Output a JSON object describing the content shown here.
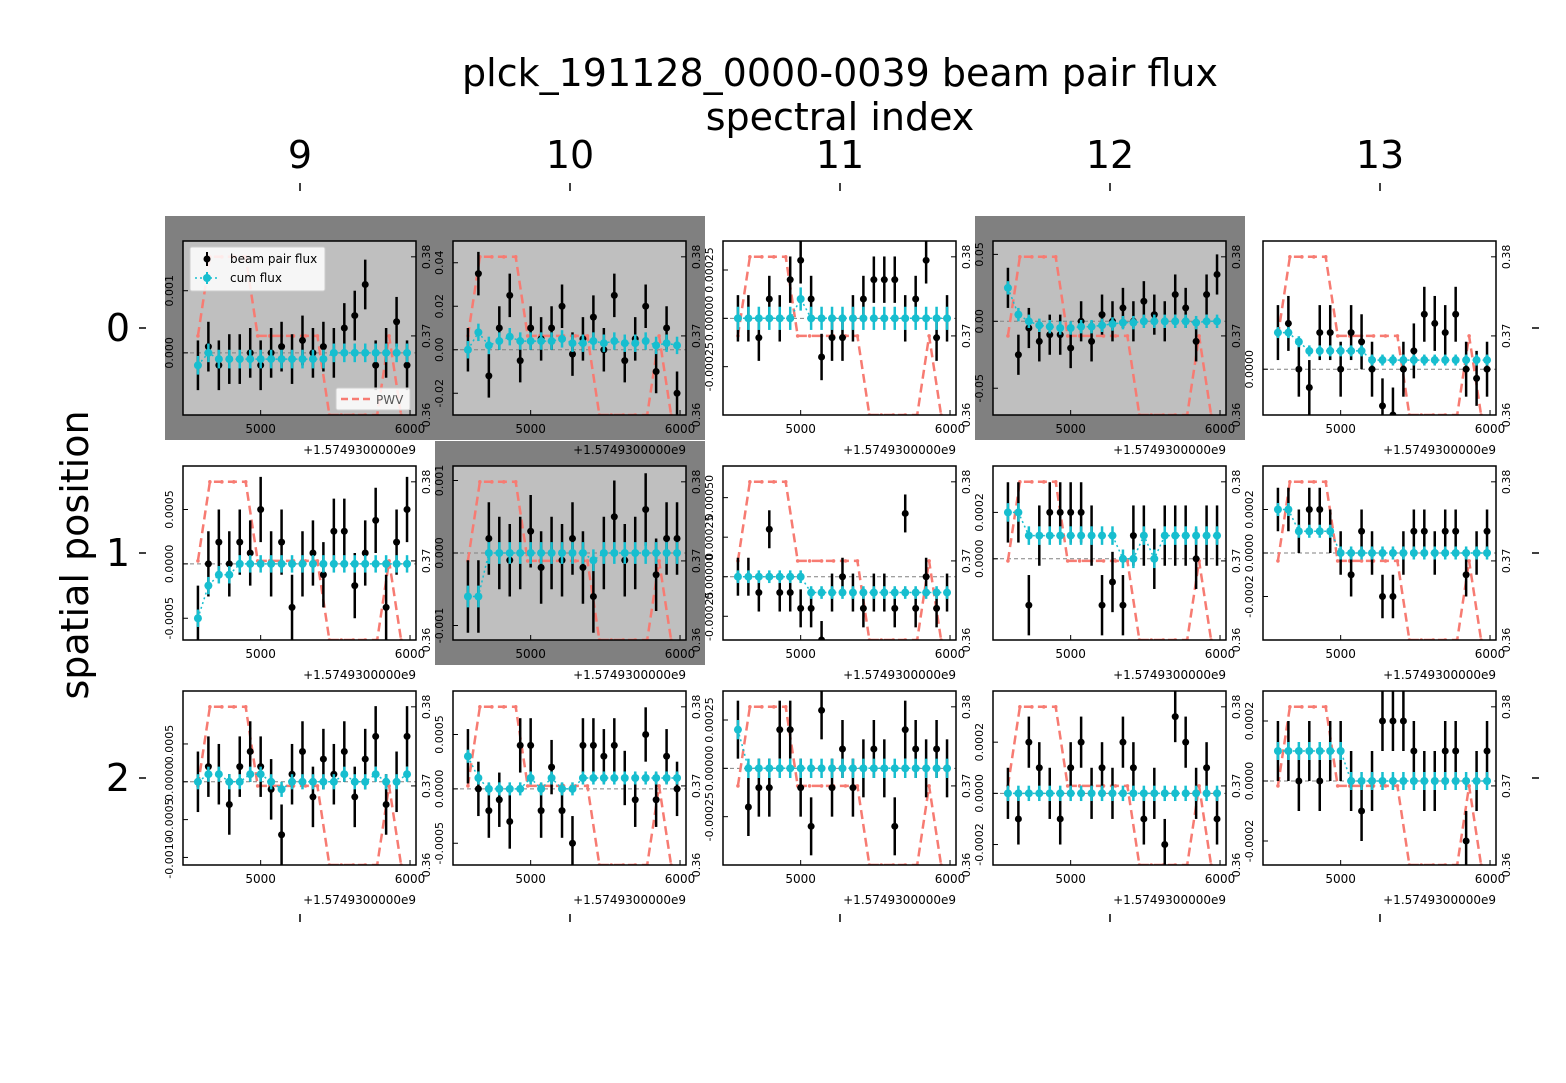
{
  "figure": {
    "title_line1": "plck_191128_0000-0039 beam pair flux",
    "title_line2": "spectral index",
    "ylabel": "spatial position",
    "column_labels": [
      "9",
      "10",
      "11",
      "12",
      "13"
    ],
    "row_labels": [
      "0",
      "1",
      "2"
    ],
    "x_tick_label": "5000",
    "x_tick_label_end": "6000",
    "x_offset_text": "+1.5749300000e9",
    "legend": {
      "beam": "beam pair flux",
      "cum": "cum flux",
      "pwv": "PWV"
    },
    "colors": {
      "beam": "#000000",
      "cum": "#17becf",
      "pwv": "#f77b72",
      "flagged_outer": "#808080",
      "flagged_inner": "#bfbfbf",
      "grid_dash": "#808080"
    }
  },
  "chart_data": {
    "type": "scatter",
    "x_range": [
      1574934480,
      1574936040
    ],
    "x_offset": 1574930000,
    "right_axis": {
      "label": "PWV",
      "ylim": [
        0.36,
        0.382
      ],
      "ticks": [
        "0.36",
        "0.37",
        "0.38"
      ]
    },
    "pwv": {
      "x": [
        4580,
        4660,
        4740,
        4820,
        4900,
        4980,
        5060,
        5140,
        5220,
        5300,
        5380,
        5460,
        5540,
        5620,
        5700,
        5780,
        5860,
        5940
      ],
      "y": [
        0.37,
        0.38,
        0.38,
        0.38,
        0.38,
        0.37,
        0.37,
        0.37,
        0.37,
        0.37,
        0.37,
        0.36,
        0.36,
        0.36,
        0.36,
        0.36,
        0.37,
        0.36
      ]
    },
    "panels": [
      {
        "row": 0,
        "col": 9,
        "flagged": true,
        "legend": true,
        "ylim": [
          -0.001,
          0.0018
        ],
        "yticks": [
          "0.000",
          "0.001"
        ],
        "beam": [
          -0.0002,
          0.0001,
          -0.0002,
          -0.0001,
          -0.0001,
          0.0,
          -0.0002,
          0.0,
          0.0001,
          -0.0001,
          0.0002,
          0.0,
          0.0001,
          0.0,
          0.0004,
          0.0006,
          0.0011,
          -0.0002,
          0.0,
          0.0005,
          -0.0002
        ],
        "cum": [
          -0.0002,
          0.0,
          -0.0001,
          -0.0001,
          -0.0001,
          -0.0001,
          -0.0001,
          -0.0001,
          -0.0001,
          -0.0001,
          -0.0001,
          -0.0001,
          -0.0001,
          0.0,
          0.0,
          0.0,
          0.0,
          0.0,
          0.0,
          0.0,
          0.0
        ],
        "beam_err": 0.0004,
        "cum_err": 0.00015
      },
      {
        "row": 0,
        "col": 10,
        "flagged": true,
        "legend": false,
        "ylim": [
          -0.03,
          0.05
        ],
        "yticks": [
          "-0.02",
          "0.00",
          "0.02",
          "0.04"
        ],
        "beam": [
          0.0,
          0.035,
          -0.012,
          0.01,
          0.025,
          -0.005,
          0.01,
          0.005,
          0.01,
          0.02,
          -0.002,
          0.005,
          0.015,
          0.0,
          0.025,
          -0.005,
          0.005,
          0.02,
          -0.01,
          0.01,
          -0.02
        ],
        "cum": [
          0.0,
          0.008,
          0.002,
          0.004,
          0.006,
          0.004,
          0.004,
          0.004,
          0.004,
          0.005,
          0.003,
          0.003,
          0.004,
          0.003,
          0.004,
          0.003,
          0.003,
          0.004,
          0.002,
          0.003,
          0.002
        ],
        "beam_err": 0.01,
        "cum_err": 0.004
      },
      {
        "row": 0,
        "col": 11,
        "flagged": false,
        "legend": false,
        "ylim": [
          -0.0005,
          0.0004
        ],
        "yticks": [
          "-0.00025",
          "0.00000",
          "0.00025"
        ],
        "beam": [
          0.0,
          -0.0,
          -0.0001,
          0.0001,
          0.0,
          0.0002,
          0.0003,
          0.0001,
          -0.0002,
          -0.0001,
          -0.0001,
          0.0,
          0.0001,
          0.0002,
          0.0002,
          0.0002,
          0.0,
          0.0001,
          0.0003,
          -0.0001,
          0.0
        ],
        "cum": [
          0.0,
          -0.0,
          0.0,
          0.0,
          0.0,
          0.0,
          0.0001,
          0.0,
          0.0,
          0.0,
          0.0,
          0.0,
          0.0,
          0.0,
          0.0,
          0.0,
          0.0,
          0.0,
          0.0,
          0.0,
          0.0
        ],
        "beam_err": 0.00012,
        "cum_err": 6e-05
      },
      {
        "row": 0,
        "col": 12,
        "flagged": true,
        "legend": false,
        "ylim": [
          -0.07,
          0.06
        ],
        "yticks": [
          "-0.05",
          "0.00",
          "0.05"
        ],
        "beam": [
          0.025,
          -0.025,
          -0.005,
          -0.015,
          -0.01,
          -0.01,
          -0.02,
          0.0,
          -0.015,
          0.005,
          0.0,
          0.01,
          0.0,
          0.015,
          0.005,
          0.0,
          0.02,
          0.01,
          -0.015,
          0.02,
          0.035
        ],
        "cum": [
          0.025,
          0.005,
          0.0,
          -0.003,
          -0.004,
          -0.005,
          -0.005,
          -0.004,
          -0.004,
          -0.003,
          -0.002,
          -0.001,
          -0.001,
          0.0,
          0.0,
          0.0,
          0.0,
          0.0,
          -0.001,
          0.0,
          0.0
        ],
        "beam_err": 0.015,
        "cum_err": 0.005
      },
      {
        "row": 0,
        "col": 13,
        "flagged": false,
        "legend": false,
        "ylim": [
          -0.0005,
          0.0014
        ],
        "yticks": [
          "0.0000"
        ],
        "beam": [
          0.0004,
          0.0005,
          0.0,
          -0.0002,
          0.0004,
          0.0004,
          0.0,
          0.0004,
          0.0003,
          0.0,
          -0.0004,
          -0.0005,
          0.0,
          0.0002,
          0.0006,
          0.0005,
          0.0004,
          0.0006,
          0.0,
          -0.0001,
          0.0
        ],
        "cum": [
          0.0004,
          0.0004,
          0.0003,
          0.0002,
          0.0002,
          0.0002,
          0.0002,
          0.0002,
          0.0002,
          0.0001,
          0.0001,
          0.0001,
          0.0001,
          0.0001,
          0.0001,
          0.0001,
          0.0001,
          0.0001,
          0.0001,
          0.0001,
          0.0001
        ],
        "beam_err": 0.0003,
        "cum_err": 6e-05
      },
      {
        "row": 1,
        "col": 9,
        "flagged": false,
        "legend": false,
        "ylim": [
          -0.0007,
          0.0009
        ],
        "yticks": [
          "-0.0005",
          "0.0000",
          "0.0005"
        ],
        "beam": [
          -0.0005,
          0.0,
          0.0002,
          0.0,
          0.0002,
          0.0001,
          0.0005,
          0.0,
          0.0002,
          -0.0004,
          0.0,
          0.0001,
          -0.0001,
          0.0003,
          0.0003,
          -0.0002,
          0.0001,
          0.0004,
          -0.0004,
          0.0002,
          0.0005
        ],
        "cum": [
          -0.0005,
          -0.0002,
          -0.0001,
          -0.0001,
          -0.0,
          -0.0,
          0.0,
          0.0,
          0.0,
          0.0,
          0.0,
          0.0,
          0.0,
          0.0,
          0.0,
          0.0,
          0.0,
          0.0,
          0.0,
          0.0,
          0.0
        ],
        "beam_err": 0.0003,
        "cum_err": 8e-05
      },
      {
        "row": 1,
        "col": 10,
        "flagged": true,
        "legend": false,
        "ylim": [
          -0.0012,
          0.0012
        ],
        "yticks": [
          "-0.001",
          "0.000",
          "0.001"
        ],
        "beam": [
          -0.0006,
          -0.0006,
          0.0002,
          0.0,
          -0.0001,
          0.0,
          0.0003,
          -0.0002,
          0.0,
          -0.0001,
          0.0002,
          -0.0002,
          -0.0006,
          0.0,
          0.0005,
          -0.0001,
          0.0,
          0.0006,
          -0.0003,
          0.0002,
          0.0002
        ],
        "cum": [
          -0.0006,
          -0.0006,
          0.0,
          0.0,
          -0.0,
          0.0,
          0.0,
          0.0,
          0.0,
          0.0,
          0.0,
          0.0,
          -0.0001,
          -0.0,
          0.0,
          0.0,
          0.0,
          0.0,
          0.0,
          0.0,
          0.0
        ],
        "beam_err": 0.0005,
        "cum_err": 0.00015
      },
      {
        "row": 1,
        "col": 11,
        "flagged": false,
        "legend": false,
        "ylim": [
          -0.0004,
          0.0007
        ],
        "yticks": [
          "-0.00025",
          "0.00000",
          "0.00025",
          "0.00050"
        ],
        "beam": [
          0.0,
          0.0,
          -0.0001,
          0.0003,
          -0.0001,
          -0.0001,
          -0.0002,
          -0.0002,
          -0.0004,
          -0.0001,
          0.0,
          -0.0001,
          -0.0002,
          -0.0001,
          -0.0001,
          -0.0002,
          0.0004,
          -0.0002,
          0.0,
          -0.0002,
          -0.0001
        ],
        "cum": [
          0.0,
          0.0,
          0.0,
          0.0,
          0.0,
          -0.0,
          -0.0,
          -0.0001,
          -0.0001,
          -0.0001,
          -0.0001,
          -0.0001,
          -0.0001,
          -0.0001,
          -0.0001,
          -0.0001,
          -0.0001,
          -0.0001,
          -0.0001,
          -0.0001,
          -0.0001
        ],
        "beam_err": 0.00012,
        "cum_err": 4e-05
      },
      {
        "row": 1,
        "col": 12,
        "flagged": false,
        "legend": false,
        "ylim": [
          -0.00035,
          0.0004
        ],
        "yticks": [
          "0.0000",
          "0.0002"
        ],
        "beam": [
          0.0002,
          0.0002,
          -0.0002,
          0.0001,
          0.0002,
          0.0002,
          0.0002,
          0.0002,
          0.0001,
          -0.0002,
          -0.0001,
          -0.0002,
          0.0001,
          0.0001,
          0.0,
          0.0001,
          0.0001,
          0.0001,
          0.0,
          0.0001,
          0.0001
        ],
        "cum": [
          0.0002,
          0.0002,
          0.0001,
          0.0001,
          0.0001,
          0.0001,
          0.0001,
          0.0001,
          0.0001,
          0.0001,
          0.0001,
          0.0,
          0.0,
          0.0001,
          0.0,
          0.0001,
          0.0001,
          0.0001,
          0.0001,
          0.0001,
          0.0001
        ],
        "beam_err": 0.00013,
        "cum_err": 4e-05
      },
      {
        "row": 1,
        "col": 13,
        "flagged": false,
        "legend": false,
        "ylim": [
          -0.0004,
          0.0004
        ],
        "yticks": [
          "-0.0002",
          "0.0000",
          "0.0002"
        ],
        "beam": [
          0.0002,
          0.0002,
          0.0001,
          0.0002,
          0.0002,
          0.0001,
          0.0,
          -0.0001,
          0.0001,
          0.0,
          -0.0002,
          -0.0002,
          0.0,
          0.0001,
          0.0001,
          0.0,
          0.0001,
          0.0001,
          -0.0001,
          0.0,
          0.0001
        ],
        "cum": [
          0.0002,
          0.0002,
          0.0001,
          0.0001,
          0.0001,
          0.0001,
          0.0,
          0.0,
          0.0,
          0.0,
          0.0,
          0.0,
          0.0,
          0.0,
          0.0,
          0.0,
          0.0,
          0.0,
          0.0,
          0.0,
          0.0
        ],
        "beam_err": 0.0001,
        "cum_err": 3e-05
      },
      {
        "row": 2,
        "col": 9,
        "flagged": false,
        "legend": false,
        "ylim": [
          -0.0011,
          0.0012
        ],
        "yticks": [
          "-0.0010",
          "-0.0005",
          "0.0000",
          "0.0005"
        ],
        "beam": [
          0.0,
          0.0002,
          0.0001,
          -0.0003,
          0.0002,
          0.0004,
          0.0002,
          -0.0001,
          -0.0007,
          0.0001,
          0.0004,
          -0.0002,
          0.0003,
          0.0001,
          0.0004,
          -0.0002,
          0.0003,
          0.0006,
          -0.0003,
          0.0,
          0.0006
        ],
        "cum": [
          0.0,
          0.0001,
          0.0001,
          -0.0,
          0.0,
          0.0001,
          0.0001,
          0.0,
          -0.0001,
          -0.0,
          0.0,
          0.0,
          0.0,
          0.0,
          0.0001,
          0.0,
          0.0,
          0.0001,
          0.0,
          0.0,
          0.0001
        ],
        "beam_err": 0.0004,
        "cum_err": 0.0001
      },
      {
        "row": 2,
        "col": 10,
        "flagged": false,
        "legend": false,
        "ylim": [
          -0.0007,
          0.0009
        ],
        "yticks": [
          "-0.0005",
          "0.0000",
          "0.0005"
        ],
        "beam": [
          0.0003,
          0.0,
          -0.0002,
          -0.0001,
          -0.0003,
          0.0004,
          0.0004,
          -0.0002,
          0.0002,
          -0.0002,
          -0.0005,
          0.0004,
          0.0004,
          0.0003,
          0.0004,
          0.0001,
          -0.0001,
          0.0005,
          -0.0001,
          0.0003,
          0.0
        ],
        "cum": [
          0.0003,
          0.0001,
          0.0,
          0.0,
          -0.0,
          0.0,
          0.0001,
          0.0,
          0.0001,
          0.0,
          0.0,
          0.0001,
          0.0001,
          0.0001,
          0.0001,
          0.0001,
          0.0001,
          0.0001,
          0.0001,
          0.0001,
          0.0001
        ],
        "beam_err": 0.00025,
        "cum_err": 6e-05
      },
      {
        "row": 2,
        "col": 11,
        "flagged": false,
        "legend": false,
        "ylim": [
          -0.0005,
          0.0004
        ],
        "yticks": [
          "-0.00025",
          "0.00000",
          "0.00025"
        ],
        "beam": [
          0.0002,
          -0.0002,
          -0.0001,
          -0.0001,
          0.0002,
          0.0002,
          -0.0001,
          -0.0003,
          0.0003,
          -0.0001,
          0.0001,
          -0.0001,
          0.0,
          0.0001,
          0.0,
          -0.0003,
          0.0002,
          0.0001,
          0.0,
          0.0001,
          0.0
        ],
        "cum": [
          0.0002,
          0.0,
          0.0,
          0.0,
          0.0,
          0.0,
          0.0,
          -0.0,
          0.0,
          0.0,
          0.0,
          0.0,
          0.0,
          0.0,
          0.0,
          0.0,
          0.0,
          0.0,
          0.0,
          0.0,
          0.0
        ],
        "beam_err": 0.00015,
        "cum_err": 5e-05
      },
      {
        "row": 2,
        "col": 12,
        "flagged": false,
        "legend": false,
        "ylim": [
          -0.00028,
          0.0004
        ],
        "yticks": [
          "-0.0002",
          "0.0000",
          "0.0002"
        ],
        "beam": [
          0.0,
          -0.0001,
          0.0002,
          0.0001,
          0.0,
          -0.0001,
          0.0001,
          0.0002,
          0.0,
          0.0001,
          0.0,
          0.0002,
          0.0001,
          -0.0001,
          0.0,
          -0.0002,
          0.0003,
          0.0002,
          0.0,
          0.0001,
          -0.0001
        ],
        "cum": [
          0.0,
          0.0,
          0.0,
          0.0,
          0.0,
          0.0,
          0.0,
          0.0,
          0.0,
          0.0,
          0.0,
          0.0,
          0.0,
          0.0,
          0.0,
          0.0,
          0.0,
          0.0,
          0.0,
          0.0,
          0.0
        ],
        "beam_err": 0.0001,
        "cum_err": 3e-05
      },
      {
        "row": 2,
        "col": 13,
        "flagged": false,
        "legend": false,
        "ylim": [
          -0.00028,
          0.0003
        ],
        "yticks": [
          "-0.0002",
          "0.0000",
          "0.0002"
        ],
        "beam": [
          0.0001,
          0.0001,
          0.0,
          0.0001,
          0.0,
          0.0001,
          0.0001,
          0.0,
          -0.0001,
          0.0,
          0.0002,
          0.0002,
          0.0002,
          0.0001,
          0.0,
          0.0,
          0.0001,
          0.0001,
          -0.0002,
          0.0,
          0.0001
        ],
        "cum": [
          0.0001,
          0.0001,
          0.0001,
          0.0001,
          0.0001,
          0.0001,
          0.0001,
          0.0,
          0.0,
          0.0,
          0.0,
          0.0,
          0.0,
          0.0,
          0.0,
          0.0,
          0.0,
          0.0,
          0.0,
          0.0,
          0.0
        ],
        "beam_err": 0.0001,
        "cum_err": 3e-05
      }
    ]
  }
}
